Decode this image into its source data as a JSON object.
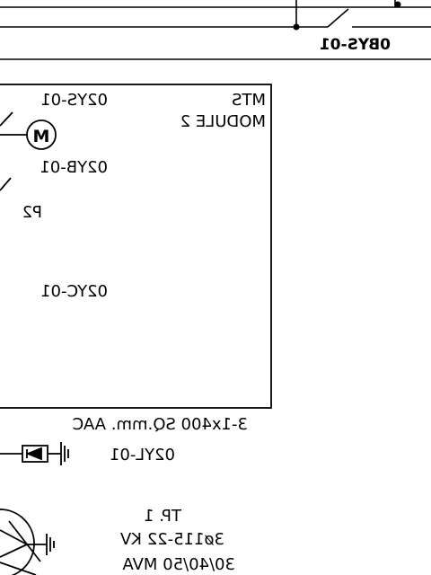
{
  "labels": {
    "breaker_top": "0BYS-01",
    "module_title_line1": "MTS",
    "module_title_line2": "MODULE 2",
    "sys_id": "02YS-01",
    "motor_symbol": "M",
    "yb_id": "02YB-01",
    "panel_id": "P2",
    "yc_id": "02YC-01",
    "cable_spec": "3-1x400 SQ.mm. AAC",
    "yl_id": "02YL-01",
    "tp_id": "TP. 1",
    "tp_voltage": "3ø115-22 KV",
    "tp_rating": "30/40/50 MVA"
  }
}
